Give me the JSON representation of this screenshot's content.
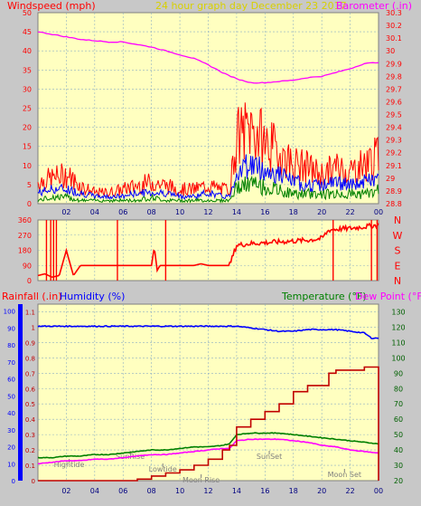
{
  "colors": {
    "background": "#c8c8c8",
    "plot_bg": "#ffffc0",
    "grid": "#8fb0c4",
    "red": "#ff0000",
    "darkred": "#c00000",
    "blue": "#0000ff",
    "magenta": "#ff00ff",
    "green": "#008000",
    "darkgreen": "#006000",
    "gold": "#d8d000"
  },
  "charts": {
    "top": {
      "left_label": "Windspeed (mph)",
      "center_label": "24 hour graph day   December 23 2017",
      "right_label": "Barometer (.in)",
      "left_ticks": [
        "0",
        "5",
        "10",
        "15",
        "20",
        "25",
        "30",
        "35",
        "40",
        "45",
        "50"
      ],
      "right_ticks": [
        "28.8",
        "28.9",
        "29",
        "29.1",
        "29.2",
        "29.3",
        "29.4",
        "29.5",
        "29.6",
        "29.7",
        "29.8",
        "29.9",
        "30",
        "30.1",
        "30.2",
        "30.3"
      ],
      "x_ticks": [
        "02",
        "04",
        "06",
        "08",
        "10",
        "12",
        "14",
        "16",
        "18",
        "20",
        "22",
        "00"
      ]
    },
    "middle": {
      "left_ticks": [
        "0",
        "90",
        "180",
        "270",
        "360"
      ],
      "right_labels": [
        "N",
        "W",
        "S",
        "E",
        "N"
      ]
    },
    "bottom": {
      "rainfall_label": "Rainfall (.in)",
      "humidity_label": "Humidity (%)",
      "temperature_label": "Temperature (°F)",
      "dewpoint_label": "Dew Point (°F)",
      "left_rain_ticks": [
        "0",
        "0.1",
        "0.2",
        "0.3",
        "0.4",
        "0.5",
        "0.6",
        "0.7",
        "0.8",
        "0.9",
        "1",
        "1.1"
      ],
      "left_humidity_ticks": [
        "0",
        "10",
        "20",
        "30",
        "40",
        "50",
        "60",
        "70",
        "80",
        "90",
        "100"
      ],
      "right_ticks": [
        "20",
        "30",
        "40",
        "50",
        "60",
        "70",
        "80",
        "90",
        "100",
        "110",
        "120",
        "130"
      ],
      "x_ticks": [
        "02",
        "04",
        "06",
        "08",
        "10",
        "12",
        "14",
        "16",
        "18",
        "20",
        "22",
        "00"
      ],
      "annotations": [
        "Hightide",
        "SunRise",
        "Lowtide",
        "Moon Rise",
        "SunSet",
        "Moon Set"
      ]
    }
  },
  "chart_data": [
    {
      "type": "line",
      "title": "24 hour graph day   December 23 2017",
      "ylabel": "Windspeed (mph)",
      "y2label": "Barometer (.in)",
      "ylim": [
        0,
        50
      ],
      "y2lim": [
        28.8,
        30.3
      ],
      "x_hours": [
        0,
        24
      ],
      "series": [
        {
          "name": "Barometer (.in)",
          "axis": "right",
          "x": [
            0,
            1,
            2,
            3,
            4,
            5,
            6,
            7,
            8,
            9,
            10,
            11,
            12,
            13,
            14,
            15,
            16,
            17,
            18,
            19,
            20,
            21,
            22,
            23,
            24
          ],
          "values": [
            30.15,
            30.13,
            30.11,
            30.09,
            30.08,
            30.07,
            30.07,
            30.05,
            30.03,
            30.0,
            29.97,
            29.94,
            29.89,
            29.83,
            29.78,
            29.75,
            29.75,
            29.76,
            29.77,
            29.79,
            29.8,
            29.83,
            29.86,
            29.9,
            29.91
          ]
        },
        {
          "name": "Windspeed (mph)",
          "axis": "left",
          "role": "gust",
          "x": [
            0,
            1,
            2,
            3,
            4,
            5,
            6,
            7,
            8,
            9,
            10,
            11,
            12,
            13,
            13.5,
            14,
            15,
            16,
            17,
            18,
            19,
            20,
            21,
            22,
            23,
            24
          ],
          "values": [
            6,
            7,
            8,
            5,
            3,
            3,
            4,
            5,
            6,
            5,
            4,
            4,
            5,
            4,
            4,
            18,
            21,
            17,
            14,
            11,
            10,
            8,
            10,
            9,
            11,
            13
          ]
        },
        {
          "role": "average",
          "axis": "left",
          "x": [
            0,
            1,
            2,
            3,
            4,
            5,
            6,
            7,
            8,
            9,
            10,
            11,
            12,
            13,
            13.5,
            14,
            15,
            16,
            17,
            18,
            19,
            20,
            21,
            22,
            23,
            24
          ],
          "values": [
            3,
            4,
            4,
            3,
            2,
            2,
            2,
            3,
            3,
            3,
            2,
            2,
            3,
            2,
            2,
            9,
            11,
            9,
            8,
            6,
            5,
            5,
            6,
            5,
            6,
            7
          ]
        },
        {
          "role": "low",
          "axis": "left",
          "x": [
            0,
            1,
            2,
            3,
            4,
            5,
            6,
            7,
            8,
            9,
            10,
            11,
            12,
            13,
            13.5,
            14,
            15,
            16,
            17,
            18,
            19,
            20,
            21,
            22,
            23,
            24
          ],
          "values": [
            1,
            2,
            2,
            1,
            1,
            1,
            1,
            1,
            2,
            1,
            1,
            1,
            1,
            1,
            1,
            5,
            6,
            5,
            4,
            3,
            3,
            3,
            3,
            3,
            3,
            4
          ]
        }
      ]
    },
    {
      "type": "line",
      "ylabel": "Wind direction",
      "ylim": [
        0,
        360
      ],
      "x_hours": [
        0,
        24
      ],
      "series": [
        {
          "name": "Wind direction",
          "x": [
            0,
            0.5,
            1,
            1.5,
            2,
            2.5,
            3,
            4,
            5,
            6,
            7,
            8,
            8.2,
            8.4,
            8.6,
            9,
            10,
            11,
            11.5,
            12,
            13,
            13.5,
            14,
            15,
            16,
            17,
            18,
            19,
            20,
            20.5,
            21,
            22,
            23,
            24
          ],
          "values": [
            30,
            40,
            20,
            30,
            180,
            30,
            90,
            90,
            90,
            90,
            90,
            90,
            200,
            60,
            90,
            90,
            90,
            90,
            100,
            90,
            90,
            90,
            210,
            220,
            225,
            230,
            235,
            240,
            250,
            300,
            305,
            310,
            320,
            330
          ]
        }
      ]
    },
    {
      "type": "line",
      "y_rain_lim": [
        0,
        1.15
      ],
      "y_humidity_lim": [
        0,
        104
      ],
      "y2lim": [
        20,
        135
      ],
      "x_hours": [
        0,
        24
      ],
      "series": [
        {
          "name": "Humidity (%)",
          "axis": "humidity",
          "x": [
            0,
            2,
            4,
            6,
            8,
            10,
            12,
            13,
            14,
            15,
            16,
            17,
            18,
            19,
            20,
            21,
            22,
            23,
            23.5,
            24
          ],
          "values": [
            91,
            91,
            91,
            91,
            91,
            91,
            91,
            91,
            91,
            90,
            89,
            88,
            88,
            89,
            89,
            89,
            88,
            87,
            84,
            84
          ]
        },
        {
          "name": "Temperature (°F)",
          "axis": "right",
          "x": [
            0,
            1,
            2,
            3,
            4,
            5,
            6,
            7,
            8,
            9,
            10,
            11,
            12,
            13,
            13.5,
            14,
            15,
            16,
            17,
            18,
            19,
            20,
            21,
            22,
            23,
            24
          ],
          "values": [
            35,
            35,
            36,
            36,
            37,
            37,
            38,
            39,
            40,
            40,
            41,
            42,
            42,
            43,
            44,
            50,
            51,
            51,
            51,
            50,
            49,
            48,
            47,
            46,
            45,
            44
          ]
        },
        {
          "name": "Dew Point (°F)",
          "axis": "right",
          "x": [
            0,
            1,
            2,
            3,
            4,
            5,
            6,
            7,
            8,
            9,
            10,
            11,
            12,
            13,
            13.5,
            14,
            15,
            16,
            17,
            18,
            19,
            20,
            21,
            22,
            23,
            24
          ],
          "values": [
            31,
            32,
            33,
            33,
            34,
            34,
            35,
            36,
            37,
            37,
            38,
            39,
            40,
            41,
            41,
            46,
            47,
            47,
            47,
            46,
            45,
            43,
            42,
            40,
            39,
            38
          ]
        },
        {
          "name": "Rainfall (.in)",
          "axis": "rain",
          "x": [
            0,
            3,
            6,
            7,
            8,
            9,
            10,
            11,
            12,
            13,
            13.5,
            14,
            15,
            16,
            17,
            18,
            19,
            20,
            20.5,
            21,
            22,
            23,
            23.9,
            24
          ],
          "values": [
            0,
            0,
            0,
            0.01,
            0.03,
            0.05,
            0.07,
            0.1,
            0.14,
            0.2,
            0.23,
            0.35,
            0.4,
            0.45,
            0.5,
            0.58,
            0.62,
            0.62,
            0.7,
            0.72,
            0.72,
            0.74,
            0.74,
            0
          ]
        }
      ]
    }
  ]
}
